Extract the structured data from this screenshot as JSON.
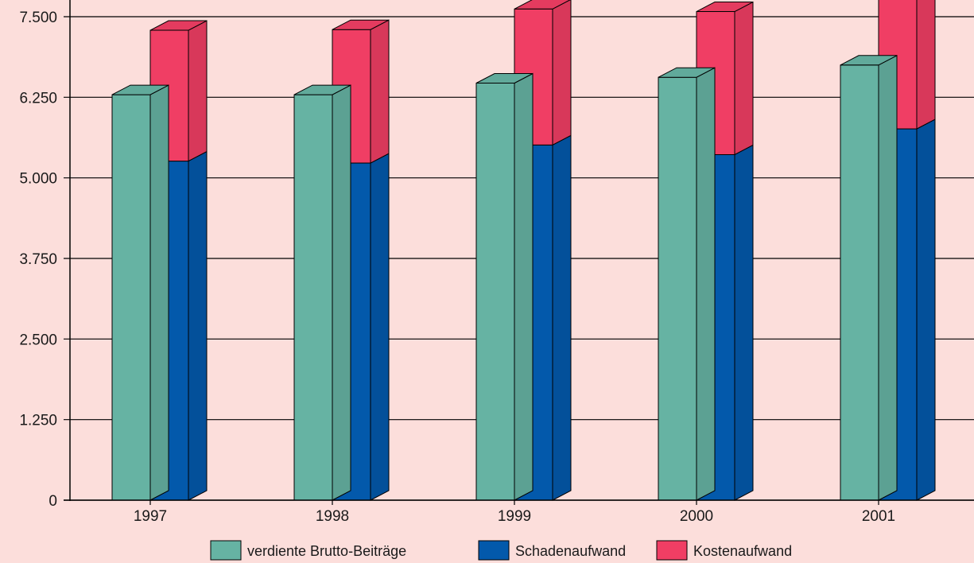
{
  "chart_data": {
    "type": "bar",
    "categories": [
      "1997",
      "1998",
      "1999",
      "2000",
      "2001"
    ],
    "ylim": [
      0,
      7500
    ],
    "yticks": [
      {
        "value": 0,
        "label": "0"
      },
      {
        "value": 1250,
        "label": "1.250"
      },
      {
        "value": 2500,
        "label": "2.500"
      },
      {
        "value": 3750,
        "label": "3.750"
      },
      {
        "value": 5000,
        "label": "5.000"
      },
      {
        "value": 6250,
        "label": "6.250"
      },
      {
        "value": 7500,
        "label": "7.500"
      }
    ],
    "grid": true,
    "legend_position": "bottom",
    "series": [
      {
        "name": "verdiente Brutto-Beiträge",
        "stack": "a",
        "color": "#66b3a3",
        "values": [
          6290,
          6290,
          6470,
          6560,
          6750
        ]
      },
      {
        "name": "Schadenaufwand",
        "stack": "b",
        "color": "#0359ab",
        "values": [
          5260,
          5230,
          5510,
          5360,
          5760
        ]
      },
      {
        "name": "Kostenaufwand",
        "stack": "b",
        "color": "#f03e64",
        "values": [
          2030,
          2070,
          2110,
          2220,
          2460
        ]
      }
    ]
  }
}
